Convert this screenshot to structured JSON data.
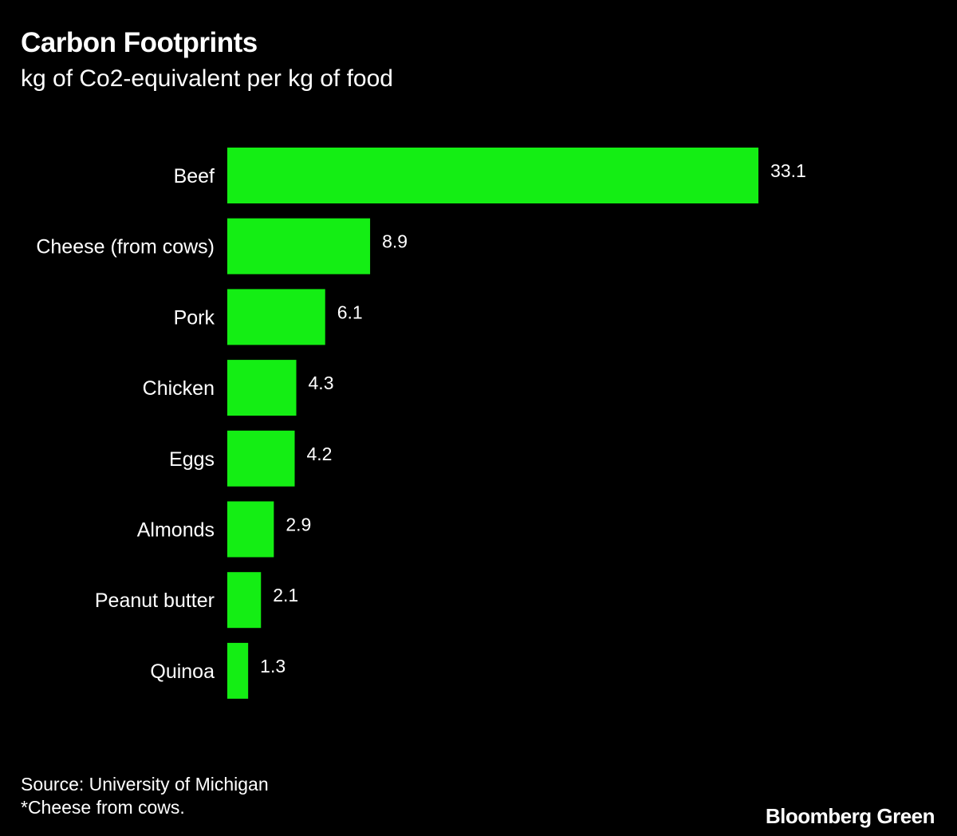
{
  "header": {
    "title": "Carbon Footprints",
    "subtitle": "kg of Co2-equivalent per kg of food"
  },
  "chart_data": {
    "type": "bar",
    "orientation": "horizontal",
    "title": "Carbon Footprints",
    "subtitle": "kg of Co2-equivalent per kg of food",
    "categories": [
      "Beef",
      "Cheese (from cows)",
      "Pork",
      "Chicken",
      "Eggs",
      "Almonds",
      "Peanut butter",
      "Quinoa"
    ],
    "values": [
      33.1,
      8.9,
      6.1,
      4.3,
      4.2,
      2.9,
      2.1,
      1.3
    ],
    "value_labels": [
      "33.1",
      "8.9",
      "6.1",
      "4.3",
      "4.2",
      "2.9",
      "2.1",
      "1.3"
    ],
    "xlabel": "",
    "ylabel": "",
    "xlim": [
      0,
      33.1
    ],
    "grid": false,
    "legend": "none",
    "bar_color": "#14ee14"
  },
  "footer": {
    "source": "Source: University of Michigan",
    "note": "*Cheese from cows.",
    "brand": "Bloomberg Green"
  },
  "colors": {
    "background": "#000000",
    "text": "#ffffff",
    "bar": "#14ee14"
  }
}
